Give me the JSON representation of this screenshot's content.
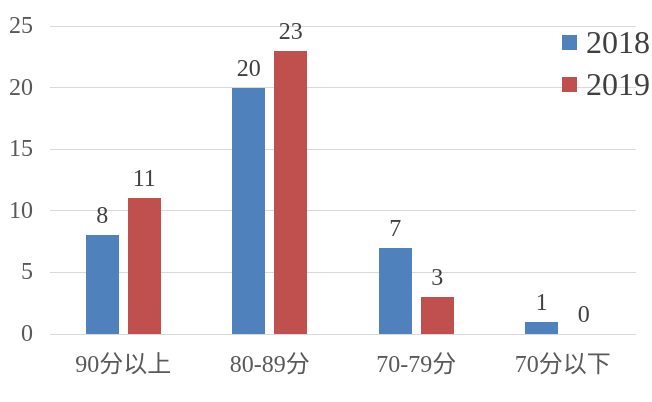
{
  "chart_data": {
    "type": "bar",
    "categories": [
      "90分以上",
      "80-89分",
      "70-79分",
      "70分以下"
    ],
    "series": [
      {
        "name": "2018",
        "color": "#4F81BD",
        "values": [
          8,
          20,
          7,
          1
        ]
      },
      {
        "name": "2019",
        "color": "#C0504D",
        "values": [
          11,
          23,
          3,
          0
        ]
      }
    ],
    "ylim": [
      0,
      25
    ],
    "yticks": [
      "0",
      "5",
      "10",
      "15",
      "20",
      "25"
    ],
    "grid": true,
    "data_labels": true,
    "legend_position": "top-right",
    "colors": {
      "gridline": "#D9D9D9",
      "axis_text": "#595959",
      "label_text": "#404040"
    }
  }
}
